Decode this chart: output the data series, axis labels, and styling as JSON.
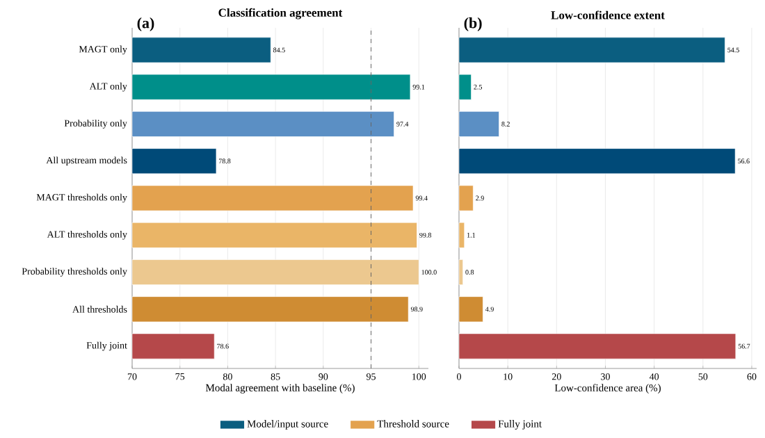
{
  "chart_data": [
    {
      "type": "bar",
      "orientation": "horizontal",
      "title": "Classification agreement",
      "xlabel": "Modal agreement with baseline (%)",
      "annotations": [
        "(a)"
      ],
      "categories": [
        "MAGT only",
        "ALT only",
        "Probability only",
        "All upstream models",
        "MAGT thresholds only",
        "ALT thresholds only",
        "Probability thresholds only",
        "All thresholds",
        "Fully joint"
      ],
      "series": [
        {
          "name": "Model/input source",
          "color": "#0b5e80",
          "colors": [
            "#0b5e80",
            "#008f8a",
            "#5b8fc4",
            "#004a78",
            null,
            null,
            null,
            null,
            null
          ],
          "values": [
            84.5,
            99.1,
            97.4,
            78.8,
            null,
            null,
            null,
            null,
            null
          ]
        },
        {
          "name": "Threshold source",
          "color": "#e3a24f",
          "colors": [
            null,
            null,
            null,
            null,
            "#e3a24f",
            "#eab567",
            "#ecc88f",
            "#cf8c33",
            null
          ],
          "values": [
            null,
            null,
            null,
            null,
            99.4,
            99.8,
            100.0,
            98.9,
            null
          ]
        },
        {
          "name": "Fully joint",
          "color": "#b5484a",
          "colors": [
            null,
            null,
            null,
            null,
            null,
            null,
            null,
            null,
            "#b5484a"
          ],
          "values": [
            null,
            null,
            null,
            null,
            null,
            null,
            null,
            null,
            78.6
          ]
        }
      ],
      "value_labels": [
        "84.5",
        "99.1",
        "97.4",
        "78.8",
        "99.4",
        "99.8",
        "100.0",
        "98.9",
        "78.6"
      ],
      "xlim": [
        70,
        101
      ],
      "xticks": [
        70,
        75,
        80,
        85,
        90,
        95,
        100
      ],
      "grid": "x",
      "legend": "bottom",
      "ref_lines": [
        {
          "axis": "x",
          "value": 95,
          "color": "#666666",
          "line_style": "dashed"
        }
      ]
    },
    {
      "type": "bar",
      "orientation": "horizontal",
      "title": "Low-confidence extent",
      "xlabel": "Low-confidence area (%)",
      "annotations": [
        "(b)"
      ],
      "categories": [
        null,
        null,
        null,
        null,
        null,
        null,
        null,
        null,
        null
      ],
      "series": [
        {
          "color": "#0b5e80",
          "colors": [
            "#0b5e80",
            "#008f8a",
            "#5b8fc4",
            "#004a78",
            null,
            null,
            null,
            null,
            null
          ],
          "values": [
            54.5,
            2.5,
            8.2,
            56.6,
            null,
            null,
            null,
            null,
            null
          ]
        },
        {
          "color": "#e3a24f",
          "colors": [
            null,
            null,
            null,
            null,
            "#e3a24f",
            "#eab567",
            "#ecc88f",
            "#cf8c33",
            null
          ],
          "values": [
            null,
            null,
            null,
            null,
            2.9,
            1.1,
            0.8,
            4.9,
            null
          ]
        },
        {
          "color": "#b5484a",
          "colors": [
            null,
            null,
            null,
            null,
            null,
            null,
            null,
            null,
            "#b5484a"
          ],
          "values": [
            null,
            null,
            null,
            null,
            null,
            null,
            null,
            null,
            56.7
          ]
        }
      ],
      "value_labels": [
        "54.5",
        "2.5",
        "8.2",
        "56.6",
        "2.9",
        "1.1",
        "0.8",
        "4.9",
        "56.7"
      ],
      "xlim": [
        0,
        61
      ],
      "xticks": [
        0,
        10,
        20,
        30,
        40,
        50,
        60
      ],
      "grid": "x",
      "tick_labels": "x"
    }
  ]
}
